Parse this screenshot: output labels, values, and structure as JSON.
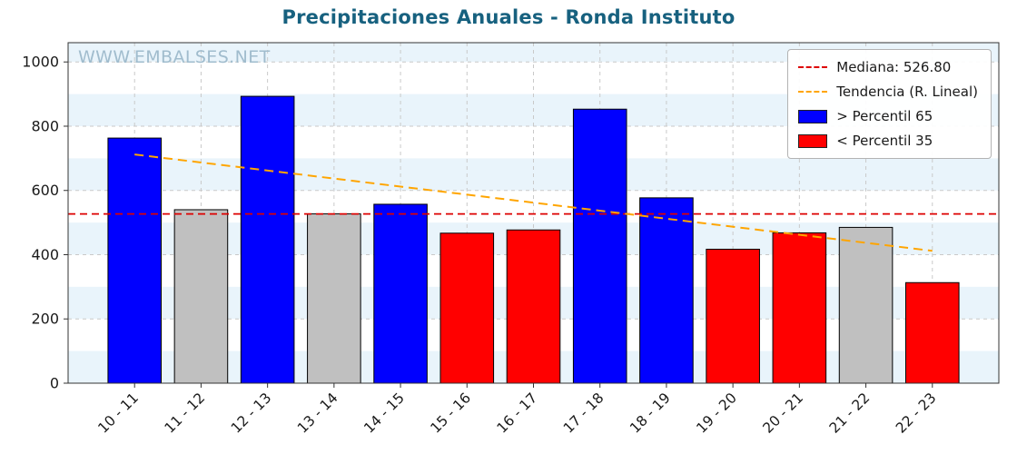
{
  "title": "Precipitaciones Anuales - Ronda Instituto",
  "watermark": "WWW.EMBALSES.NET",
  "legend": {
    "median_label": "Mediana: 526.80",
    "trend_label": "Tendencia (R. Lineal)",
    "above_label": "> Percentil 65",
    "below_label": "< Percentil 35"
  },
  "colors": {
    "above": "#0000ff",
    "below": "#ff0000",
    "mid": "#c0c0c0",
    "median_line": "#dd0000",
    "trend_line": "#ffa500",
    "title": "#17617f",
    "watermark": "#a0bccd",
    "band": "#e9f4fb",
    "grid": "#c9c9c9",
    "axis": "#333333"
  },
  "chart_data": {
    "type": "bar",
    "title": "Precipitaciones Anuales - Ronda Instituto",
    "xlabel": "",
    "ylabel": "",
    "categories": [
      "10 - 11",
      "11 - 12",
      "12 - 13",
      "13 - 14",
      "14 - 15",
      "15 - 16",
      "16 - 17",
      "17 - 18",
      "18 - 19",
      "19 - 20",
      "20 - 21",
      "21 - 22",
      "22 - 23"
    ],
    "values": [
      763,
      540,
      893,
      527,
      557,
      467,
      477,
      853,
      577,
      417,
      468,
      485,
      313
    ],
    "bar_classes": [
      "above",
      "mid",
      "above",
      "mid",
      "above",
      "below",
      "below",
      "above",
      "above",
      "below",
      "below",
      "mid",
      "below"
    ],
    "median": 526.8,
    "trend": {
      "start": 712,
      "end": 412
    },
    "ylim": [
      0,
      1060
    ],
    "yticks": [
      0,
      200,
      400,
      600,
      800,
      1000
    ],
    "grid": true,
    "legend_position": "upper right",
    "series_legend": [
      {
        "label": "Mediana: 526.80",
        "style": "dashed-line",
        "color": "#dd0000"
      },
      {
        "label": "Tendencia (R. Lineal)",
        "style": "dashed-line",
        "color": "#ffa500"
      },
      {
        "label": "> Percentil 65",
        "style": "patch",
        "color": "#0000ff"
      },
      {
        "label": "< Percentil 35",
        "style": "patch",
        "color": "#ff0000"
      }
    ]
  }
}
